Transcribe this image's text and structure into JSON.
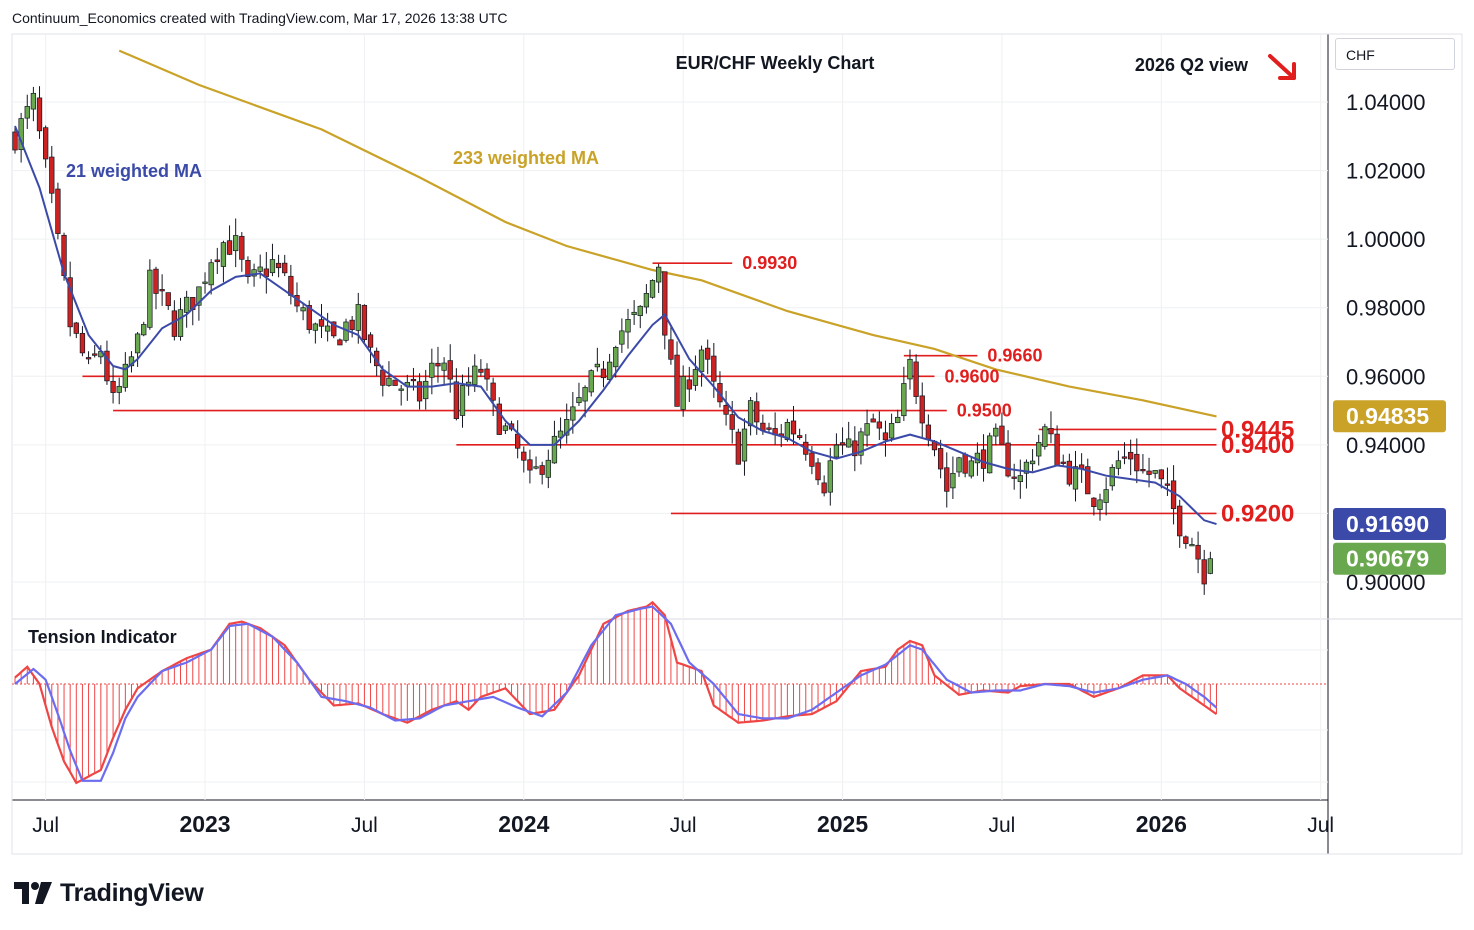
{
  "header": {
    "credit": "Continuum_Economics created with TradingView.com, Mar 17, 2026 13:38 UTC"
  },
  "chart_title": "EUR/CHF Weekly Chart",
  "view_label": "2026 Q2 view",
  "currency": "CHF",
  "logo_text": "TradingView",
  "colors": {
    "bull": "#6aa84f",
    "bear": "#cc2222",
    "ma21": "#3b4aa8",
    "ma233": "#c9a227",
    "level": "#e01e1e",
    "grid": "#eef0f3",
    "axis": "#131722",
    "tension_red": "#f04545",
    "tension_blue": "#6b6cf0"
  },
  "chart_data": {
    "type": "candlestick",
    "title": "EUR/CHF Weekly Chart",
    "y_axis": {
      "min": 0.89,
      "max": 1.057,
      "ticks": [
        "1.04000",
        "1.02000",
        "1.00000",
        "0.98000",
        "0.96000",
        "0.94000",
        "0.90000"
      ],
      "tick_values": [
        1.04,
        1.02,
        1.0,
        0.98,
        0.96,
        0.94,
        0.9
      ]
    },
    "x_axis": {
      "labels": [
        {
          "text": "Jul",
          "week": 5,
          "bold": false
        },
        {
          "text": "2023",
          "week": 31,
          "bold": true
        },
        {
          "text": "Jul",
          "week": 57,
          "bold": false
        },
        {
          "text": "2024",
          "week": 83,
          "bold": true
        },
        {
          "text": "Jul",
          "week": 109,
          "bold": false
        },
        {
          "text": "2025",
          "week": 135,
          "bold": true
        },
        {
          "text": "Jul",
          "week": 161,
          "bold": false
        },
        {
          "text": "2026",
          "week": 187,
          "bold": true
        },
        {
          "text": "Jul",
          "week": 213,
          "bold": false
        }
      ]
    },
    "price_badges": [
      {
        "label": "0.94835",
        "value": 0.94835,
        "color": "#c9a227"
      },
      {
        "label": "0.91690",
        "value": 0.9169,
        "color": "#3b4aa8"
      },
      {
        "label": "0.90679",
        "value": 0.90679,
        "color": "#6aa84f"
      }
    ],
    "levels": [
      {
        "label": "0.9930",
        "value": 0.993,
        "from_week": 104,
        "to_week": 117,
        "big": false
      },
      {
        "label": "0.9660",
        "value": 0.966,
        "from_week": 145,
        "to_week": 157,
        "big": false
      },
      {
        "label": "0.9600",
        "value": 0.96,
        "from_week": 11,
        "to_week": 150,
        "big": false
      },
      {
        "label": "0.9500",
        "value": 0.95,
        "from_week": 16,
        "to_week": 152,
        "big": false
      },
      {
        "label": "0.9445",
        "value": 0.9445,
        "from_week": 167,
        "to_week": 196,
        "big": true
      },
      {
        "label": "0.9400",
        "value": 0.94,
        "from_week": 72,
        "to_week": 196,
        "big": true
      },
      {
        "label": "0.9200",
        "value": 0.92,
        "from_week": 107,
        "to_week": 196,
        "big": true
      }
    ],
    "annotations": [
      {
        "text": "21 weighted MA",
        "color": "#3b4aa8"
      },
      {
        "text": "233 weighted MA",
        "color": "#c9a227"
      }
    ],
    "anchors": [
      [
        0,
        1.03
      ],
      [
        3,
        1.04
      ],
      [
        6,
        1.01
      ],
      [
        9,
        0.975
      ],
      [
        12,
        0.962
      ],
      [
        14,
        0.968
      ],
      [
        16,
        0.952
      ],
      [
        18,
        0.96
      ],
      [
        20,
        0.97
      ],
      [
        22,
        0.987
      ],
      [
        24,
        0.982
      ],
      [
        26,
        0.975
      ],
      [
        28,
        0.98
      ],
      [
        30,
        0.985
      ],
      [
        32,
        0.995
      ],
      [
        34,
        0.999
      ],
      [
        36,
        0.998
      ],
      [
        38,
        0.986
      ],
      [
        40,
        0.99
      ],
      [
        42,
        0.993
      ],
      [
        44,
        0.988
      ],
      [
        46,
        0.98
      ],
      [
        48,
        0.976
      ],
      [
        50,
        0.972
      ],
      [
        52,
        0.97
      ],
      [
        54,
        0.975
      ],
      [
        56,
        0.977
      ],
      [
        58,
        0.966
      ],
      [
        60,
        0.96
      ],
      [
        62,
        0.958
      ],
      [
        64,
        0.956
      ],
      [
        66,
        0.954
      ],
      [
        68,
        0.962
      ],
      [
        70,
        0.965
      ],
      [
        72,
        0.95
      ],
      [
        74,
        0.958
      ],
      [
        76,
        0.962
      ],
      [
        78,
        0.95
      ],
      [
        80,
        0.944
      ],
      [
        82,
        0.938
      ],
      [
        84,
        0.929
      ],
      [
        86,
        0.935
      ],
      [
        88,
        0.94
      ],
      [
        90,
        0.945
      ],
      [
        92,
        0.952
      ],
      [
        94,
        0.958
      ],
      [
        96,
        0.962
      ],
      [
        98,
        0.972
      ],
      [
        100,
        0.975
      ],
      [
        102,
        0.978
      ],
      [
        104,
        0.988
      ],
      [
        105,
        0.993
      ],
      [
        106,
        0.975
      ],
      [
        107,
        0.962
      ],
      [
        108,
        0.952
      ],
      [
        110,
        0.96
      ],
      [
        112,
        0.968
      ],
      [
        114,
        0.956
      ],
      [
        116,
        0.946
      ],
      [
        118,
        0.938
      ],
      [
        120,
        0.95
      ],
      [
        122,
        0.944
      ],
      [
        124,
        0.942
      ],
      [
        126,
        0.946
      ],
      [
        128,
        0.943
      ],
      [
        130,
        0.937
      ],
      [
        132,
        0.929
      ],
      [
        134,
        0.94
      ],
      [
        136,
        0.938
      ],
      [
        138,
        0.942
      ],
      [
        140,
        0.946
      ],
      [
        142,
        0.94
      ],
      [
        144,
        0.947
      ],
      [
        146,
        0.963
      ],
      [
        148,
        0.95
      ],
      [
        150,
        0.94
      ],
      [
        152,
        0.927
      ],
      [
        154,
        0.937
      ],
      [
        156,
        0.934
      ],
      [
        158,
        0.937
      ],
      [
        160,
        0.941
      ],
      [
        162,
        0.934
      ],
      [
        164,
        0.93
      ],
      [
        166,
        0.938
      ],
      [
        168,
        0.944
      ],
      [
        170,
        0.937
      ],
      [
        172,
        0.932
      ],
      [
        174,
        0.93
      ],
      [
        176,
        0.925
      ],
      [
        178,
        0.929
      ],
      [
        180,
        0.935
      ],
      [
        182,
        0.937
      ],
      [
        184,
        0.932
      ],
      [
        186,
        0.931
      ],
      [
        188,
        0.925
      ],
      [
        190,
        0.917
      ],
      [
        192,
        0.912
      ],
      [
        194,
        0.903
      ],
      [
        195,
        0.907
      ]
    ],
    "ma21_anchors": [
      [
        0,
        1.033
      ],
      [
        4,
        1.015
      ],
      [
        8,
        0.99
      ],
      [
        12,
        0.972
      ],
      [
        16,
        0.963
      ],
      [
        18,
        0.962
      ],
      [
        20,
        0.965
      ],
      [
        24,
        0.974
      ],
      [
        28,
        0.978
      ],
      [
        32,
        0.985
      ],
      [
        36,
        0.989
      ],
      [
        40,
        0.99
      ],
      [
        44,
        0.985
      ],
      [
        48,
        0.98
      ],
      [
        52,
        0.975
      ],
      [
        56,
        0.972
      ],
      [
        60,
        0.962
      ],
      [
        64,
        0.957
      ],
      [
        68,
        0.957
      ],
      [
        72,
        0.958
      ],
      [
        76,
        0.957
      ],
      [
        80,
        0.947
      ],
      [
        84,
        0.94
      ],
      [
        88,
        0.94
      ],
      [
        92,
        0.947
      ],
      [
        96,
        0.956
      ],
      [
        100,
        0.966
      ],
      [
        104,
        0.975
      ],
      [
        106,
        0.978
      ],
      [
        110,
        0.965
      ],
      [
        114,
        0.957
      ],
      [
        118,
        0.948
      ],
      [
        122,
        0.944
      ],
      [
        126,
        0.942
      ],
      [
        130,
        0.938
      ],
      [
        134,
        0.936
      ],
      [
        138,
        0.938
      ],
      [
        142,
        0.941
      ],
      [
        146,
        0.943
      ],
      [
        150,
        0.941
      ],
      [
        154,
        0.938
      ],
      [
        158,
        0.935
      ],
      [
        162,
        0.933
      ],
      [
        166,
        0.932
      ],
      [
        170,
        0.934
      ],
      [
        174,
        0.933
      ],
      [
        178,
        0.931
      ],
      [
        182,
        0.93
      ],
      [
        186,
        0.929
      ],
      [
        190,
        0.925
      ],
      [
        194,
        0.918
      ],
      [
        196,
        0.9169
      ]
    ],
    "ma233_anchors": [
      [
        17,
        1.055
      ],
      [
        30,
        1.045
      ],
      [
        50,
        1.032
      ],
      [
        66,
        1.018
      ],
      [
        80,
        1.005
      ],
      [
        90,
        0.998
      ],
      [
        104,
        0.991
      ],
      [
        112,
        0.988
      ],
      [
        126,
        0.979
      ],
      [
        140,
        0.972
      ],
      [
        150,
        0.968
      ],
      [
        160,
        0.962
      ],
      [
        172,
        0.957
      ],
      [
        184,
        0.953
      ],
      [
        196,
        0.9483
      ]
    ],
    "tension_indicator": {
      "title": "Tension Indicator",
      "red_anchors": [
        [
          0,
          0.3
        ],
        [
          2,
          0.8
        ],
        [
          4,
          0.0
        ],
        [
          6,
          -2.0
        ],
        [
          8,
          -3.6
        ],
        [
          10,
          -4.6
        ],
        [
          12,
          -4.3
        ],
        [
          14,
          -4.0
        ],
        [
          16,
          -2.5
        ],
        [
          18,
          -1.2
        ],
        [
          20,
          -0.2
        ],
        [
          24,
          0.6
        ],
        [
          28,
          1.2
        ],
        [
          32,
          1.6
        ],
        [
          35,
          2.8
        ],
        [
          37,
          2.9
        ],
        [
          40,
          2.6
        ],
        [
          44,
          1.8
        ],
        [
          48,
          0.2
        ],
        [
          52,
          -1.0
        ],
        [
          56,
          -0.9
        ],
        [
          60,
          -1.4
        ],
        [
          64,
          -1.8
        ],
        [
          68,
          -1.2
        ],
        [
          72,
          -0.8
        ],
        [
          74,
          -1.2
        ],
        [
          76,
          -0.6
        ],
        [
          80,
          -0.2
        ],
        [
          84,
          -1.4
        ],
        [
          88,
          -1.2
        ],
        [
          92,
          0.4
        ],
        [
          96,
          2.8
        ],
        [
          100,
          3.4
        ],
        [
          103,
          3.6
        ],
        [
          104,
          3.8
        ],
        [
          106,
          3.2
        ],
        [
          108,
          1.0
        ],
        [
          112,
          0.6
        ],
        [
          114,
          -1.0
        ],
        [
          118,
          -1.8
        ],
        [
          122,
          -1.7
        ],
        [
          126,
          -1.5
        ],
        [
          130,
          -1.4
        ],
        [
          134,
          -0.8
        ],
        [
          138,
          0.6
        ],
        [
          142,
          0.8
        ],
        [
          144,
          1.6
        ],
        [
          146,
          2.0
        ],
        [
          148,
          1.8
        ],
        [
          150,
          0.4
        ],
        [
          154,
          -0.5
        ],
        [
          158,
          -0.3
        ],
        [
          162,
          -0.4
        ],
        [
          164,
          -0.1
        ],
        [
          168,
          0.0
        ],
        [
          172,
          0.0
        ],
        [
          176,
          -0.6
        ],
        [
          180,
          -0.2
        ],
        [
          184,
          0.4
        ],
        [
          188,
          0.4
        ],
        [
          190,
          -0.2
        ],
        [
          194,
          -1.0
        ],
        [
          196,
          -1.4
        ]
      ],
      "blue_anchors": [
        [
          0,
          0.0
        ],
        [
          3,
          0.7
        ],
        [
          5,
          0.2
        ],
        [
          7,
          -1.4
        ],
        [
          9,
          -3.1
        ],
        [
          11,
          -4.5
        ],
        [
          14,
          -4.5
        ],
        [
          16,
          -3.2
        ],
        [
          18,
          -1.6
        ],
        [
          20,
          -0.6
        ],
        [
          24,
          0.6
        ],
        [
          28,
          1.0
        ],
        [
          32,
          1.6
        ],
        [
          35,
          2.7
        ],
        [
          38,
          2.8
        ],
        [
          42,
          2.2
        ],
        [
          46,
          1.0
        ],
        [
          50,
          -0.6
        ],
        [
          54,
          -0.8
        ],
        [
          58,
          -1.1
        ],
        [
          62,
          -1.7
        ],
        [
          66,
          -1.6
        ],
        [
          70,
          -1.0
        ],
        [
          74,
          -0.8
        ],
        [
          78,
          -0.6
        ],
        [
          82,
          -1.1
        ],
        [
          86,
          -1.5
        ],
        [
          90,
          -0.4
        ],
        [
          94,
          1.8
        ],
        [
          98,
          3.2
        ],
        [
          102,
          3.5
        ],
        [
          104,
          3.6
        ],
        [
          107,
          2.8
        ],
        [
          110,
          1.0
        ],
        [
          114,
          0.0
        ],
        [
          118,
          -1.4
        ],
        [
          122,
          -1.6
        ],
        [
          126,
          -1.6
        ],
        [
          130,
          -1.2
        ],
        [
          134,
          -0.4
        ],
        [
          138,
          0.4
        ],
        [
          142,
          0.9
        ],
        [
          146,
          1.8
        ],
        [
          148,
          1.6
        ],
        [
          152,
          0.2
        ],
        [
          156,
          -0.4
        ],
        [
          160,
          -0.3
        ],
        [
          164,
          -0.3
        ],
        [
          168,
          0.0
        ],
        [
          172,
          -0.1
        ],
        [
          176,
          -0.4
        ],
        [
          180,
          -0.2
        ],
        [
          184,
          0.2
        ],
        [
          188,
          0.4
        ],
        [
          191,
          0.0
        ],
        [
          194,
          -0.6
        ],
        [
          196,
          -1.1
        ]
      ]
    }
  }
}
